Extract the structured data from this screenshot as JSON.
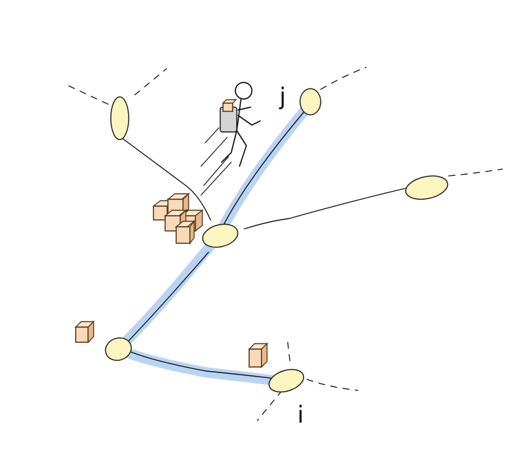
{
  "labels": {
    "node_i": "i",
    "node_j": "j"
  },
  "colors": {
    "path_highlight": "#b9d4f3",
    "node_fill": "#fbf5bf",
    "package_fill": "#f8d9b9",
    "stroke": "#111111"
  },
  "icons": {
    "courier": "running-person-carrying-package-icon",
    "package": "cardboard-box-icon"
  }
}
